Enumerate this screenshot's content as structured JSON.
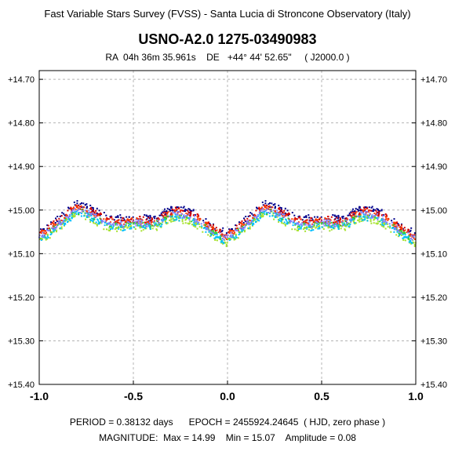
{
  "header": {
    "survey": "Fast Variable Stars Survey (FVSS) - Santa Lucia di Stroncone Observatory (Italy)",
    "star_name": "USNO-A2.0  1275-03490983",
    "ra_label": "RA",
    "ra_value": "04h 36m 35.961s",
    "de_label": "DE",
    "de_value": "+44° 44' 52.65\"",
    "epoch_frame": "( J2000.0 )"
  },
  "footer": {
    "period": "PERIOD = 0.38132 days",
    "epoch": "EPOCH = 2455924.24645  ( HJD, zero phase )",
    "magnitude_label": "MAGNITUDE:",
    "max": "Max = 14.99",
    "min": "Min = 15.07",
    "amplitude": "Amplitude = 0.08"
  },
  "chart_data": {
    "type": "scatter",
    "title": "",
    "xlabel": "",
    "ylabel": "",
    "xlim": [
      -1.0,
      1.0
    ],
    "ylim": [
      15.4,
      14.68
    ],
    "y_inverted": true,
    "x_ticks": [
      "-1.0",
      "-0.5",
      "0.0",
      "0.5",
      "1.0"
    ],
    "y_ticks": [
      "+14.70",
      "+14.80",
      "+14.90",
      "+15.00",
      "+15.10",
      "+15.20",
      "+15.30",
      "+15.40"
    ],
    "grid": true,
    "colors": [
      "#00008b",
      "#d40000",
      "#ff3c00",
      "#33cc33",
      "#a6e22e",
      "#00bfff",
      "#7f7fff"
    ],
    "light_curve": {
      "phase": [
        0.0,
        0.1,
        0.2,
        0.27,
        0.35,
        0.45,
        0.5,
        0.6,
        0.72,
        0.82,
        0.92,
        1.0
      ],
      "mag": [
        15.055,
        15.025,
        14.99,
        15.0,
        15.02,
        15.025,
        15.02,
        15.025,
        15.0,
        15.01,
        15.04,
        15.06
      ]
    },
    "series": [
      {
        "values_offset": -0.006
      },
      {
        "values_offset": 0.0
      },
      {
        "values_offset": 0.004
      },
      {
        "values_offset": 0.012
      },
      {
        "values_offset": 0.02
      },
      {
        "values_offset": 0.016
      },
      {
        "values_offset": 0.008
      }
    ]
  }
}
